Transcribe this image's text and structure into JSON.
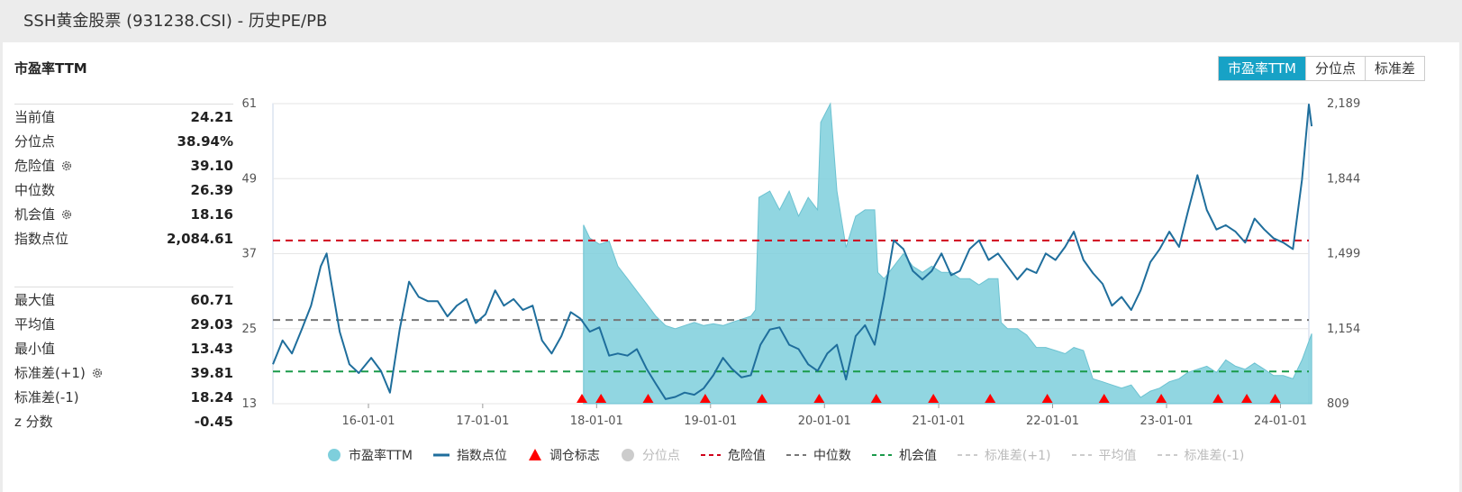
{
  "page_title": "SSH黄金股票 (931238.CSI) - 历史PE/PB",
  "chart_title": "市盈率TTM",
  "tabs": [
    {
      "label": "市盈率TTM",
      "active": true
    },
    {
      "label": "分位点",
      "active": false
    },
    {
      "label": "标准差",
      "active": false
    }
  ],
  "stats_top": [
    {
      "label": "当前值",
      "value": "24.21",
      "gear": false
    },
    {
      "label": "分位点",
      "value": "38.94%",
      "gear": false
    },
    {
      "label": "危险值",
      "value": "39.10",
      "gear": true
    },
    {
      "label": "中位数",
      "value": "26.39",
      "gear": false
    },
    {
      "label": "机会值",
      "value": "18.16",
      "gear": true
    },
    {
      "label": "指数点位",
      "value": "2,084.61",
      "gear": false
    }
  ],
  "stats_bottom": [
    {
      "label": "最大值",
      "value": "60.71",
      "gear": false
    },
    {
      "label": "平均值",
      "value": "29.03",
      "gear": false
    },
    {
      "label": "最小值",
      "value": "13.43",
      "gear": false
    },
    {
      "label": "标准差(+1)",
      "value": "39.81",
      "gear": true
    },
    {
      "label": "标准差(-1)",
      "value": "18.24",
      "gear": false
    },
    {
      "label": "z 分数",
      "value": "-0.45",
      "gear": false
    }
  ],
  "legend": [
    {
      "label": "市盈率TTM",
      "symbol": "circle",
      "color": "#7ecfdc",
      "active": true
    },
    {
      "label": "指数点位",
      "symbol": "line",
      "color": "#1f6e9c",
      "active": true
    },
    {
      "label": "调仓标志",
      "symbol": "triangle",
      "color": "#ff0000",
      "active": true
    },
    {
      "label": "分位点",
      "symbol": "circle",
      "color": "#cccccc",
      "active": false
    },
    {
      "label": "危险值",
      "symbol": "dash",
      "color": "#d0021b",
      "active": true
    },
    {
      "label": "中位数",
      "symbol": "dash",
      "color": "#777777",
      "active": true
    },
    {
      "label": "机会值",
      "symbol": "dash",
      "color": "#1a9a4a",
      "active": true
    },
    {
      "label": "标准差(+1)",
      "symbol": "dash",
      "color": "#cccccc",
      "active": false
    },
    {
      "label": "平均值",
      "symbol": "dash",
      "color": "#cccccc",
      "active": false
    },
    {
      "label": "标准差(-1)",
      "symbol": "dash",
      "color": "#cccccc",
      "active": false
    }
  ],
  "chart_data": {
    "type": "area+line",
    "x_start": "2015-03",
    "x_end": "2024-04",
    "x_tick_labels": [
      "16-01-01",
      "17-01-01",
      "18-01-01",
      "19-01-01",
      "20-01-01",
      "21-01-01",
      "22-01-01",
      "23-01-01",
      "24-01-01"
    ],
    "y_left": {
      "min": 13,
      "max": 61,
      "ticks": [
        "61",
        "49",
        "37",
        "25",
        "13"
      ]
    },
    "y_right": {
      "min": 809,
      "max": 2189,
      "ticks": [
        "2,189",
        "1,844",
        "1,499",
        "1,154",
        "809"
      ]
    },
    "reference_lines": [
      {
        "name": "危险值",
        "value": 39.1,
        "color": "#d0021b"
      },
      {
        "name": "中位数",
        "value": 26.39,
        "color": "#777777"
      },
      {
        "name": "机会值",
        "value": 18.16,
        "color": "#1a9a4a"
      }
    ],
    "pe_series": {
      "name": "市盈率TTM",
      "color": "#7ecfdc",
      "points": [
        [
          "2017-11-20",
          41.6
        ],
        [
          "2017-12-10",
          39.5
        ],
        [
          "2018-01-10",
          38.5
        ],
        [
          "2018-02-10",
          39
        ],
        [
          "2018-03-10",
          35
        ],
        [
          "2018-04-10",
          33
        ],
        [
          "2018-05-10",
          31
        ],
        [
          "2018-06-10",
          29
        ],
        [
          "2018-07-10",
          27
        ],
        [
          "2018-08-10",
          25.5
        ],
        [
          "2018-09-10",
          25
        ],
        [
          "2018-10-10",
          25.5
        ],
        [
          "2018-11-10",
          26
        ],
        [
          "2018-12-10",
          25.5
        ],
        [
          "2019-01-10",
          25.8
        ],
        [
          "2019-02-10",
          25.5
        ],
        [
          "2019-03-10",
          26
        ],
        [
          "2019-04-10",
          26.5
        ],
        [
          "2019-05-10",
          27
        ],
        [
          "2019-05-25",
          28
        ],
        [
          "2019-06-05",
          46
        ],
        [
          "2019-07-10",
          47
        ],
        [
          "2019-08-10",
          44
        ],
        [
          "2019-09-10",
          47
        ],
        [
          "2019-10-10",
          43
        ],
        [
          "2019-11-10",
          46
        ],
        [
          "2019-12-10",
          44
        ],
        [
          "2019-12-20",
          58
        ],
        [
          "2020-01-20",
          61
        ],
        [
          "2020-02-10",
          47
        ],
        [
          "2020-03-10",
          38
        ],
        [
          "2020-04-10",
          43
        ],
        [
          "2020-05-10",
          44
        ],
        [
          "2020-06-10",
          44
        ],
        [
          "2020-06-20",
          34
        ],
        [
          "2020-07-10",
          33
        ],
        [
          "2020-08-10",
          35
        ],
        [
          "2020-09-10",
          37
        ],
        [
          "2020-10-10",
          35
        ],
        [
          "2020-11-10",
          34
        ],
        [
          "2020-12-10",
          35
        ],
        [
          "2021-01-10",
          34
        ],
        [
          "2021-02-10",
          34
        ],
        [
          "2021-03-10",
          33
        ],
        [
          "2021-04-10",
          33
        ],
        [
          "2021-05-10",
          32
        ],
        [
          "2021-06-10",
          33
        ],
        [
          "2021-07-10",
          33
        ],
        [
          "2021-07-20",
          26
        ],
        [
          "2021-08-10",
          25
        ],
        [
          "2021-09-10",
          25
        ],
        [
          "2021-10-10",
          24
        ],
        [
          "2021-11-10",
          22
        ],
        [
          "2021-12-10",
          22
        ],
        [
          "2022-01-10",
          21.5
        ],
        [
          "2022-02-10",
          21
        ],
        [
          "2022-03-10",
          22
        ],
        [
          "2022-04-10",
          21.5
        ],
        [
          "2022-05-10",
          17
        ],
        [
          "2022-06-10",
          16.5
        ],
        [
          "2022-07-10",
          16
        ],
        [
          "2022-08-10",
          15.5
        ],
        [
          "2022-09-10",
          16
        ],
        [
          "2022-10-10",
          14
        ],
        [
          "2022-11-10",
          15
        ],
        [
          "2022-12-10",
          15.5
        ],
        [
          "2023-01-10",
          16.5
        ],
        [
          "2023-02-10",
          17
        ],
        [
          "2023-03-10",
          18
        ],
        [
          "2023-04-10",
          18.5
        ],
        [
          "2023-05-10",
          19
        ],
        [
          "2023-06-10",
          18
        ],
        [
          "2023-07-10",
          20
        ],
        [
          "2023-08-10",
          19
        ],
        [
          "2023-09-10",
          18.5
        ],
        [
          "2023-10-10",
          19.5
        ],
        [
          "2023-11-10",
          18.5
        ],
        [
          "2023-12-10",
          17.5
        ],
        [
          "2024-01-10",
          17.5
        ],
        [
          "2024-02-10",
          17
        ],
        [
          "2024-03-10",
          20
        ],
        [
          "2024-04-10",
          24.2
        ]
      ]
    },
    "index_series": {
      "name": "指数点位",
      "color": "#1f6e9c",
      "points": [
        [
          "2015-03-01",
          990
        ],
        [
          "2015-04-01",
          1100
        ],
        [
          "2015-05-01",
          1040
        ],
        [
          "2015-06-01",
          1150
        ],
        [
          "2015-07-01",
          1260
        ],
        [
          "2015-08-01",
          1440
        ],
        [
          "2015-08-20",
          1500
        ],
        [
          "2015-09-01",
          1390
        ],
        [
          "2015-10-01",
          1140
        ],
        [
          "2015-11-01",
          990
        ],
        [
          "2015-12-01",
          950
        ],
        [
          "2016-01-10",
          1020
        ],
        [
          "2016-02-10",
          960
        ],
        [
          "2016-03-10",
          860
        ],
        [
          "2016-04-10",
          1150
        ],
        [
          "2016-05-10",
          1370
        ],
        [
          "2016-06-10",
          1300
        ],
        [
          "2016-07-10",
          1280
        ],
        [
          "2016-08-10",
          1280
        ],
        [
          "2016-09-10",
          1210
        ],
        [
          "2016-10-10",
          1260
        ],
        [
          "2016-11-10",
          1290
        ],
        [
          "2016-12-10",
          1180
        ],
        [
          "2017-01-10",
          1220
        ],
        [
          "2017-02-10",
          1330
        ],
        [
          "2017-03-10",
          1260
        ],
        [
          "2017-04-10",
          1290
        ],
        [
          "2017-05-10",
          1240
        ],
        [
          "2017-06-10",
          1260
        ],
        [
          "2017-07-10",
          1100
        ],
        [
          "2017-08-10",
          1040
        ],
        [
          "2017-09-10",
          1120
        ],
        [
          "2017-10-10",
          1230
        ],
        [
          "2017-11-10",
          1200
        ],
        [
          "2017-12-10",
          1140
        ],
        [
          "2018-01-10",
          1160
        ],
        [
          "2018-02-10",
          1030
        ],
        [
          "2018-03-10",
          1040
        ],
        [
          "2018-04-10",
          1030
        ],
        [
          "2018-05-10",
          1060
        ],
        [
          "2018-06-10",
          970
        ],
        [
          "2018-07-10",
          900
        ],
        [
          "2018-08-10",
          830
        ],
        [
          "2018-09-10",
          840
        ],
        [
          "2018-10-10",
          860
        ],
        [
          "2018-11-10",
          850
        ],
        [
          "2018-12-10",
          880
        ],
        [
          "2019-01-10",
          940
        ],
        [
          "2019-02-10",
          1020
        ],
        [
          "2019-03-10",
          970
        ],
        [
          "2019-04-10",
          930
        ],
        [
          "2019-05-10",
          940
        ],
        [
          "2019-06-10",
          1080
        ],
        [
          "2019-07-10",
          1150
        ],
        [
          "2019-08-10",
          1160
        ],
        [
          "2019-09-10",
          1080
        ],
        [
          "2019-10-10",
          1060
        ],
        [
          "2019-11-10",
          990
        ],
        [
          "2019-12-10",
          960
        ],
        [
          "2020-01-10",
          1040
        ],
        [
          "2020-02-10",
          1080
        ],
        [
          "2020-03-10",
          920
        ],
        [
          "2020-04-10",
          1120
        ],
        [
          "2020-05-10",
          1170
        ],
        [
          "2020-06-10",
          1080
        ],
        [
          "2020-07-10",
          1300
        ],
        [
          "2020-08-10",
          1560
        ],
        [
          "2020-09-10",
          1520
        ],
        [
          "2020-10-10",
          1420
        ],
        [
          "2020-11-10",
          1380
        ],
        [
          "2020-12-10",
          1420
        ],
        [
          "2021-01-10",
          1500
        ],
        [
          "2021-02-10",
          1400
        ],
        [
          "2021-03-10",
          1420
        ],
        [
          "2021-04-10",
          1520
        ],
        [
          "2021-05-10",
          1560
        ],
        [
          "2021-06-10",
          1470
        ],
        [
          "2021-07-10",
          1500
        ],
        [
          "2021-08-10",
          1440
        ],
        [
          "2021-09-10",
          1380
        ],
        [
          "2021-10-10",
          1430
        ],
        [
          "2021-11-10",
          1410
        ],
        [
          "2021-12-10",
          1500
        ],
        [
          "2022-01-10",
          1470
        ],
        [
          "2022-02-10",
          1530
        ],
        [
          "2022-03-10",
          1600
        ],
        [
          "2022-04-10",
          1470
        ],
        [
          "2022-05-10",
          1410
        ],
        [
          "2022-06-10",
          1360
        ],
        [
          "2022-07-10",
          1260
        ],
        [
          "2022-08-10",
          1300
        ],
        [
          "2022-09-10",
          1240
        ],
        [
          "2022-10-10",
          1330
        ],
        [
          "2022-11-10",
          1460
        ],
        [
          "2022-12-10",
          1520
        ],
        [
          "2023-01-10",
          1600
        ],
        [
          "2023-02-10",
          1530
        ],
        [
          "2023-03-10",
          1690
        ],
        [
          "2023-04-10",
          1860
        ],
        [
          "2023-05-10",
          1700
        ],
        [
          "2023-06-10",
          1610
        ],
        [
          "2023-07-10",
          1630
        ],
        [
          "2023-08-10",
          1600
        ],
        [
          "2023-09-10",
          1550
        ],
        [
          "2023-10-10",
          1660
        ],
        [
          "2023-11-10",
          1610
        ],
        [
          "2023-12-10",
          1570
        ],
        [
          "2024-01-10",
          1550
        ],
        [
          "2024-02-10",
          1520
        ],
        [
          "2024-03-10",
          1840
        ],
        [
          "2024-04-01",
          2185
        ],
        [
          "2024-04-10",
          2085
        ]
      ]
    },
    "rebalance_markers": [
      "2017-11-15",
      "2018-01-15",
      "2018-06-15",
      "2018-12-15",
      "2019-06-15",
      "2019-12-15",
      "2020-06-15",
      "2020-12-15",
      "2021-06-15",
      "2021-12-15",
      "2022-06-15",
      "2022-12-15",
      "2023-06-15",
      "2023-09-15",
      "2023-12-15"
    ]
  }
}
